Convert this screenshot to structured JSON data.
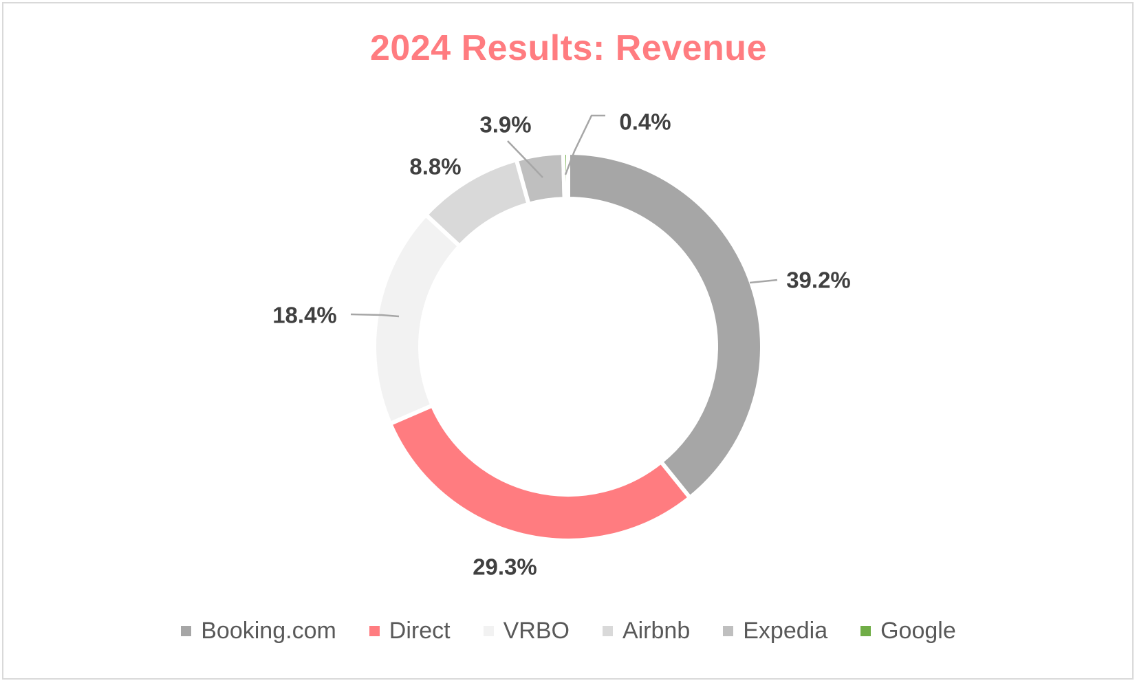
{
  "chart_data": {
    "type": "pie",
    "variant": "donut",
    "title": "2024 Results: Revenue",
    "title_color": "#ff7c80",
    "categories": [
      "Booking.com",
      "Direct",
      "VRBO",
      "Airbnb",
      "Expedia",
      "Google"
    ],
    "values": [
      39.2,
      29.3,
      18.4,
      8.8,
      3.9,
      0.4
    ],
    "value_labels": [
      "39.2%",
      "29.3%",
      "18.4%",
      "8.8%",
      "3.9%",
      "0.4%"
    ],
    "colors": [
      "#a6a6a6",
      "#ff7c80",
      "#f2f2f2",
      "#d9d9d9",
      "#bfbfbf",
      "#70ad47"
    ],
    "legend_position": "bottom"
  }
}
